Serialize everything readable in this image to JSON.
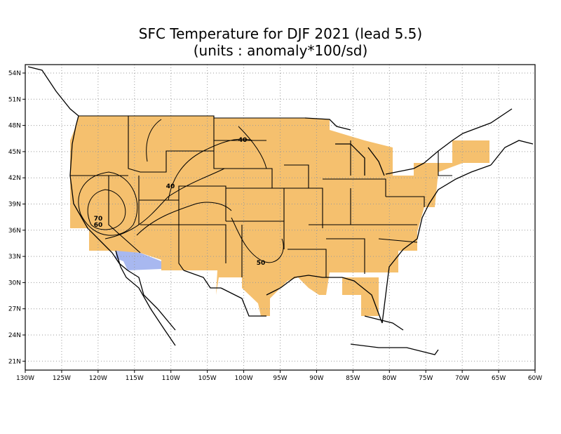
{
  "title": {
    "line1": "SFC Temperature for DJF 2021 (lead 5.5)",
    "line2": "(units : anomaly*100/sd)"
  },
  "map": {
    "lon_range": [
      -130,
      -60
    ],
    "lat_range": [
      19.5,
      55
    ],
    "lat_ticks": [
      "54N",
      "51N",
      "48N",
      "45N",
      "42N",
      "39N",
      "36N",
      "33N",
      "30N",
      "27N",
      "24N",
      "21N"
    ],
    "lon_ticks": [
      "130W",
      "125W",
      "120W",
      "115W",
      "110W",
      "105W",
      "100W",
      "95W",
      "90W",
      "85W",
      "80W",
      "75W",
      "70W",
      "65W",
      "60W"
    ],
    "colors": {
      "positive": "#f5c06e",
      "negative": "#a8b8f0",
      "line": "#000000",
      "grid": "#9a9a9a"
    },
    "contour_labels": [
      "40",
      "40",
      "70",
      "60",
      "50"
    ]
  }
}
